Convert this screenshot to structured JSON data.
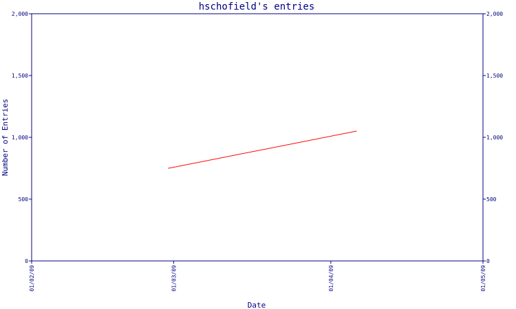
{
  "chart_data": {
    "type": "line",
    "title": "hschofield's entries",
    "xlabel": "Date",
    "ylabel": "Number of Entries",
    "x_ticks": [
      "01/02/09",
      "01/03/09",
      "01/04/09",
      "01/05/09"
    ],
    "ylim": [
      0,
      2000
    ],
    "y_ticks": [
      "0",
      "500",
      "1,000",
      "1,500",
      "2,000"
    ],
    "y_tick_values": [
      0,
      500,
      1000,
      1500,
      2000
    ],
    "series": [
      {
        "x": [
          "2009-02-28",
          "2009-04-06"
        ],
        "y": [
          750,
          1050
        ]
      }
    ],
    "grid": false,
    "colors": {
      "axis": "#000080",
      "series": "#ff0000"
    }
  }
}
